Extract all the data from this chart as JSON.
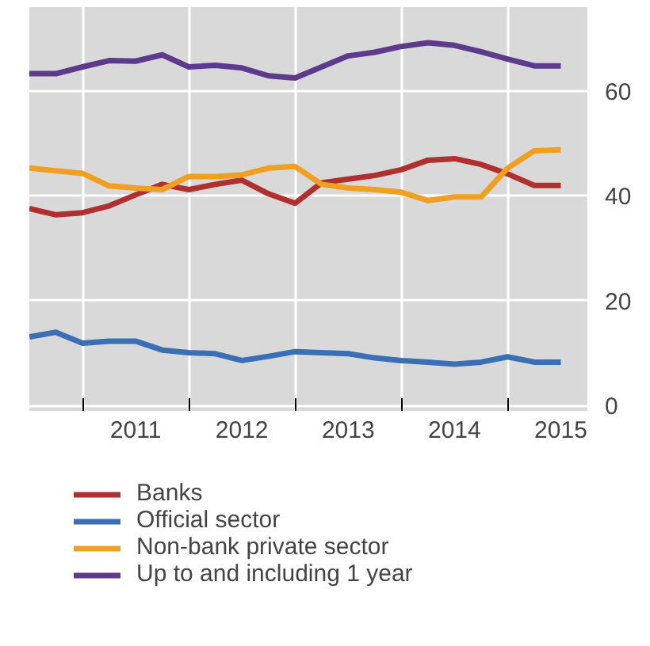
{
  "chart_data": {
    "type": "line",
    "x": [
      2010.5,
      2010.75,
      2011,
      2011.25,
      2011.5,
      2011.75,
      2012,
      2012.25,
      2012.5,
      2012.75,
      2013,
      2013.25,
      2013.5,
      2013.75,
      2014,
      2014.25,
      2014.5,
      2014.75,
      2015,
      2015.25,
      2015.5
    ],
    "series": [
      {
        "name": "Banks",
        "color": "#b03030",
        "values": [
          37.6,
          36.4,
          36.8,
          38.1,
          40.2,
          42.2,
          41.2,
          42.2,
          43.0,
          40.4,
          38.6,
          42.5,
          43.2,
          43.9,
          45.0,
          46.8,
          47.1,
          46.0,
          44.2,
          42.0,
          42.0
        ]
      },
      {
        "name": "Official sector",
        "color": "#3a6fb5",
        "values": [
          13.1,
          14.0,
          11.9,
          12.3,
          12.3,
          10.6,
          10.1,
          9.9,
          8.6,
          9.4,
          10.3,
          10.1,
          9.9,
          9.1,
          8.6,
          8.3,
          7.9,
          8.3,
          9.3,
          8.3,
          8.3
        ]
      },
      {
        "name": "Non-bank private sector",
        "color": "#f0a020",
        "values": [
          45.3,
          44.8,
          44.3,
          41.9,
          41.5,
          41.2,
          43.7,
          43.7,
          44.0,
          45.3,
          45.6,
          42.2,
          41.5,
          41.2,
          40.7,
          39.1,
          39.8,
          39.8,
          45.3,
          48.6,
          48.8
        ]
      },
      {
        "name": "Up to and including 1 year",
        "color": "#5e3a8c",
        "values": [
          63.3,
          63.3,
          64.6,
          65.8,
          65.7,
          66.9,
          64.6,
          64.9,
          64.4,
          62.9,
          62.5,
          64.6,
          66.7,
          67.4,
          68.5,
          69.2,
          68.7,
          67.5,
          66.1,
          64.8,
          64.8
        ]
      }
    ],
    "xlim": [
      2010.5,
      2015.75
    ],
    "xticks": [
      {
        "value": 2011,
        "label": null
      },
      {
        "value": 2012,
        "label": null
      },
      {
        "value": 2013,
        "label": null
      },
      {
        "value": 2014,
        "label": null
      },
      {
        "value": 2015,
        "label": null
      },
      {
        "value": 2011.5,
        "label": "2011"
      },
      {
        "value": 2012.5,
        "label": "2012"
      },
      {
        "value": 2013.5,
        "label": "2013"
      },
      {
        "value": 2014.5,
        "label": "2014"
      },
      {
        "value": 2015.5,
        "label": "2015"
      }
    ],
    "ylim": [
      -1,
      76
    ],
    "yticks": [
      0,
      20,
      40,
      60
    ],
    "grid": true,
    "legend": "bottom",
    "line_style": "solid"
  }
}
